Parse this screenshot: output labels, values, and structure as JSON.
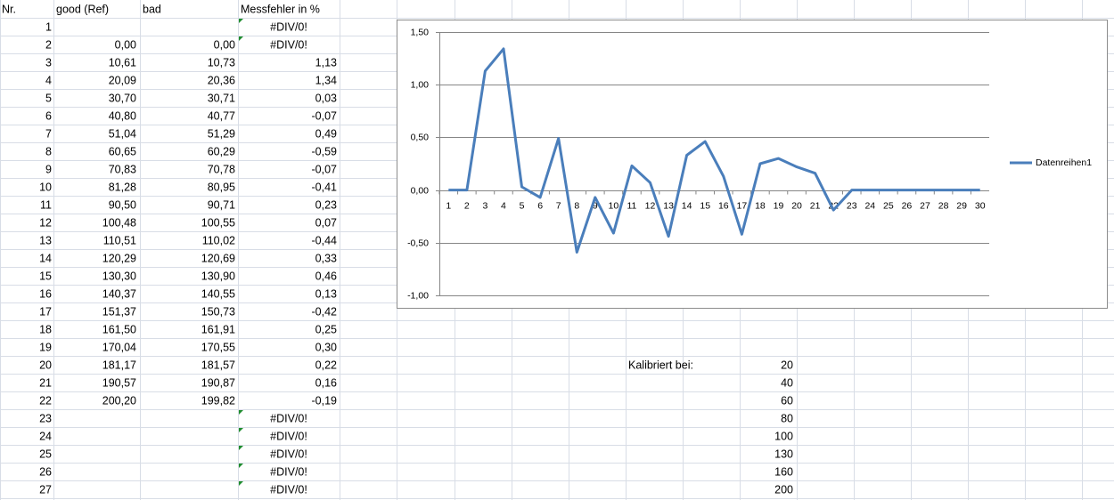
{
  "sheet": {
    "header": [
      "Nr.",
      "good (Ref)",
      "bad",
      "Messfehler in %"
    ],
    "rows": [
      [
        "1",
        null,
        null,
        "#DIV/0!"
      ],
      [
        "2",
        "0,00",
        "0,00",
        "#DIV/0!"
      ],
      [
        "3",
        "10,61",
        "10,73",
        "1,13"
      ],
      [
        "4",
        "20,09",
        "20,36",
        "1,34"
      ],
      [
        "5",
        "30,70",
        "30,71",
        "0,03"
      ],
      [
        "6",
        "40,80",
        "40,77",
        "-0,07"
      ],
      [
        "7",
        "51,04",
        "51,29",
        "0,49"
      ],
      [
        "8",
        "60,65",
        "60,29",
        "-0,59"
      ],
      [
        "9",
        "70,83",
        "70,78",
        "-0,07"
      ],
      [
        "10",
        "81,28",
        "80,95",
        "-0,41"
      ],
      [
        "11",
        "90,50",
        "90,71",
        "0,23"
      ],
      [
        "12",
        "100,48",
        "100,55",
        "0,07"
      ],
      [
        "13",
        "110,51",
        "110,02",
        "-0,44"
      ],
      [
        "14",
        "120,29",
        "120,69",
        "0,33"
      ],
      [
        "15",
        "130,30",
        "130,90",
        "0,46"
      ],
      [
        "16",
        "140,37",
        "140,55",
        "0,13"
      ],
      [
        "17",
        "151,37",
        "150,73",
        "-0,42"
      ],
      [
        "18",
        "161,50",
        "161,91",
        "0,25"
      ],
      [
        "19",
        "170,04",
        "170,55",
        "0,30"
      ],
      [
        "20",
        "181,17",
        "181,57",
        "0,22"
      ],
      [
        "21",
        "190,57",
        "190,87",
        "0,16"
      ],
      [
        "22",
        "200,20",
        "199,82",
        "-0,19"
      ],
      [
        "23",
        null,
        null,
        "#DIV/0!"
      ],
      [
        "24",
        null,
        null,
        "#DIV/0!"
      ],
      [
        "25",
        null,
        null,
        "#DIV/0!"
      ],
      [
        "26",
        null,
        null,
        "#DIV/0!"
      ],
      [
        "27",
        null,
        null,
        "#DIV/0!"
      ]
    ],
    "calibration": {
      "label": "Kalibriert bei:",
      "values": [
        "20",
        "40",
        "60",
        "80",
        "100",
        "130",
        "160",
        "200"
      ]
    }
  },
  "chart_data": {
    "type": "line",
    "categories": [
      1,
      2,
      3,
      4,
      5,
      6,
      7,
      8,
      9,
      10,
      11,
      12,
      13,
      14,
      15,
      16,
      17,
      18,
      19,
      20,
      21,
      22,
      23,
      24,
      25,
      26,
      27,
      28,
      29,
      30
    ],
    "series": [
      {
        "name": "Datenreihen1",
        "color": "#4a7ebb",
        "values": [
          0,
          0,
          1.13,
          1.34,
          0.03,
          -0.07,
          0.49,
          -0.59,
          -0.07,
          -0.41,
          0.23,
          0.07,
          -0.44,
          0.33,
          0.46,
          0.13,
          -0.42,
          0.25,
          0.3,
          0.22,
          0.16,
          -0.19,
          0,
          0,
          0,
          0,
          0,
          0,
          0,
          0
        ]
      }
    ],
    "ylim": [
      -1,
      1.5
    ],
    "yticks": [
      {
        "value": -1,
        "label": "-1,00"
      },
      {
        "value": -0.5,
        "label": "-0,50"
      },
      {
        "value": 0,
        "label": "0,00"
      },
      {
        "value": 0.5,
        "label": "0,50"
      },
      {
        "value": 1,
        "label": "1,00"
      },
      {
        "value": 1.5,
        "label": "1,50"
      }
    ],
    "grid": true,
    "legend": "right"
  }
}
